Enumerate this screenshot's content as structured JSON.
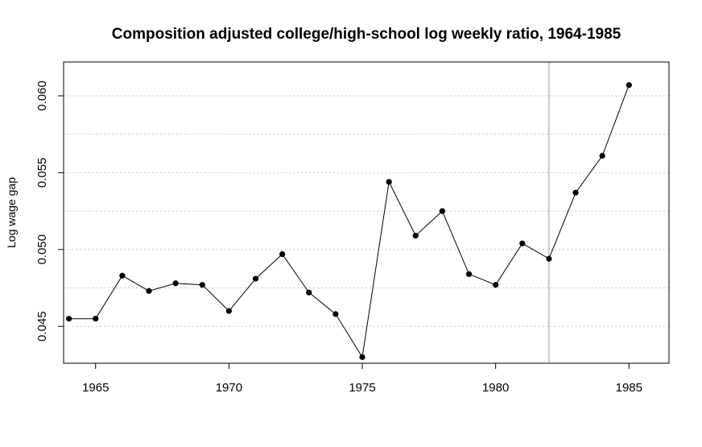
{
  "chart_data": {
    "type": "line",
    "title": "Composition adjusted college/high-school log weekly ratio, 1964-1985",
    "xlabel": "",
    "ylabel": "Log wage gap",
    "xlim": [
      1963.8,
      1986.5
    ],
    "ylim": [
      0.0426,
      0.0622
    ],
    "x_ticks": [
      1965,
      1970,
      1975,
      1980,
      1985
    ],
    "x_tick_labels": [
      "1965",
      "1970",
      "1975",
      "1980",
      "1985"
    ],
    "y_ticks": [
      0.045,
      0.05,
      0.055,
      0.06
    ],
    "y_tick_labels": [
      "0.045",
      "0.050",
      "0.055",
      "0.060"
    ],
    "grid": "horizontal dotted",
    "vertical_line_x": 1982,
    "series": [
      {
        "x": [
          1964,
          1965,
          1966,
          1967,
          1968,
          1969,
          1970,
          1971,
          1972,
          1973,
          1974,
          1975,
          1976,
          1977,
          1978,
          1979,
          1980,
          1981,
          1982,
          1983,
          1984,
          1985
        ],
        "values": [
          0.0455,
          0.0455,
          0.0483,
          0.0473,
          0.0478,
          0.0477,
          0.046,
          0.0481,
          0.0497,
          0.0472,
          0.0458,
          0.043,
          0.0544,
          0.0509,
          0.0525,
          0.0484,
          0.0477,
          0.0504,
          0.0494,
          0.0537,
          0.0561,
          0.0607
        ]
      }
    ]
  }
}
